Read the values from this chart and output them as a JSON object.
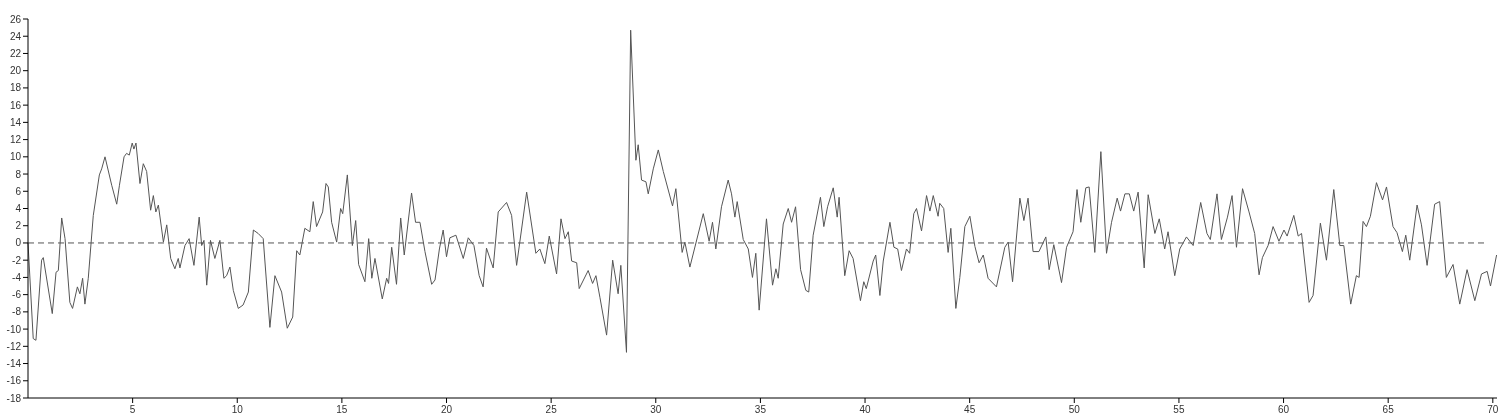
{
  "chart_data": {
    "type": "line",
    "x": [
      0,
      0.25,
      0.38,
      0.65,
      0.73,
      1.16,
      1.34,
      1.45,
      1.61,
      1.77,
      2.0,
      2.13,
      2.36,
      2.48,
      2.61,
      2.72,
      2.88,
      3.12,
      3.41,
      3.52,
      3.68,
      4.0,
      4.24,
      4.37,
      4.59,
      4.71,
      4.84,
      4.98,
      5.06,
      5.16,
      5.35,
      5.51,
      5.67,
      5.86,
      5.99,
      6.11,
      6.23,
      6.47,
      6.63,
      6.82,
      7.02,
      7.18,
      7.26,
      7.5,
      7.7,
      7.93,
      8.18,
      8.3,
      8.41,
      8.54,
      8.72,
      8.93,
      9.17,
      9.36,
      9.49,
      9.65,
      9.81,
      10.05,
      10.28,
      10.53,
      10.77,
      11.0,
      11.24,
      11.56,
      11.8,
      12.12,
      12.39,
      12.65,
      12.84,
      12.99,
      13.23,
      13.47,
      13.63,
      13.79,
      14.08,
      14.24,
      14.35,
      14.51,
      14.75,
      14.94,
      15.04,
      15.26,
      15.5,
      15.66,
      15.8,
      16.1,
      16.28,
      16.43,
      16.58,
      16.93,
      17.14,
      17.23,
      17.38,
      17.61,
      17.81,
      17.98,
      18.33,
      18.52,
      18.73,
      18.97,
      19.29,
      19.45,
      19.66,
      19.84,
      20.0,
      20.16,
      20.45,
      20.8,
      21.04,
      21.31,
      21.56,
      21.75,
      21.91,
      22.23,
      22.47,
      22.87,
      23.11,
      23.35,
      23.83,
      24.27,
      24.46,
      24.7,
      24.91,
      25.26,
      25.47,
      25.66,
      25.82,
      25.98,
      26.22,
      26.34,
      26.77,
      26.98,
      27.14,
      27.33,
      27.65,
      27.94,
      28.2,
      28.33,
      28.6,
      28.8,
      29.05,
      29.16,
      29.32,
      29.53,
      29.64,
      29.88,
      30.12,
      30.36,
      30.8,
      30.96,
      31.26,
      31.39,
      31.63,
      32.27,
      32.55,
      32.71,
      32.87,
      33.14,
      33.46,
      33.62,
      33.78,
      33.89,
      34.18,
      34.42,
      34.62,
      34.78,
      34.94,
      35.29,
      35.58,
      35.74,
      35.85,
      36.09,
      36.33,
      36.49,
      36.68,
      36.92,
      37.17,
      37.31,
      37.52,
      37.87,
      38.03,
      38.21,
      38.48,
      38.67,
      38.76,
      39.03,
      39.24,
      39.43,
      39.78,
      39.94,
      40.06,
      40.39,
      40.51,
      40.71,
      40.87,
      41.19,
      41.38,
      41.56,
      41.74,
      41.98,
      42.13,
      42.33,
      42.46,
      42.7,
      42.94,
      43.1,
      43.26,
      43.49,
      43.57,
      43.76,
      43.97,
      44.1,
      44.34,
      44.53,
      44.77,
      45.01,
      45.25,
      45.45,
      45.65,
      45.88,
      46.28,
      46.68,
      46.84,
      47.05,
      47.4,
      47.59,
      47.79,
      48.03,
      48.31,
      48.64,
      48.8,
      49.02,
      49.39,
      49.63,
      49.94,
      50.13,
      50.31,
      50.55,
      50.71,
      50.98,
      51.27,
      51.54,
      51.78,
      52.05,
      52.21,
      52.42,
      52.63,
      52.84,
      53.05,
      53.34,
      53.53,
      53.85,
      54.06,
      54.32,
      54.48,
      54.8,
      55.04,
      55.36,
      55.68,
      56.04,
      56.34,
      56.5,
      56.82,
      57.03,
      57.32,
      57.54,
      57.75,
      58.04,
      58.35,
      58.62,
      58.83,
      58.99,
      59.26,
      59.5,
      59.78,
      60.02,
      60.17,
      60.49,
      60.7,
      60.86,
      61.22,
      61.41,
      61.76,
      62.05,
      62.4,
      62.69,
      62.88,
      63.21,
      63.48,
      63.61,
      63.8,
      63.96,
      64.15,
      64.44,
      64.73,
      64.92,
      65.23,
      65.42,
      65.68,
      65.84,
      66.03,
      66.38,
      66.59,
      66.86,
      67.22,
      67.46,
      67.78,
      68.1,
      68.42,
      68.77,
      69.14,
      69.46,
      69.73,
      69.89,
      70.18
    ],
    "series": [
      {
        "color": "#555555",
        "values": [
          0,
          -11.1,
          -11.3,
          -2.0,
          -1.7,
          -8.2,
          -3.4,
          -3.2,
          2.9,
          0.5,
          -6.9,
          -7.6,
          -5.1,
          -5.9,
          -4.1,
          -7.1,
          -4.1,
          3.2,
          7.9,
          8.6,
          10.0,
          6.7,
          4.5,
          6.7,
          10.0,
          10.4,
          10.2,
          11.6,
          10.9,
          11.6,
          6.9,
          9.2,
          8.3,
          3.8,
          5.5,
          3.6,
          4.4,
          0.1,
          2.1,
          -1.8,
          -3.0,
          -1.8,
          -2.9,
          -0.3,
          0.5,
          -2.6,
          3.0,
          -0.3,
          0.3,
          -4.9,
          0.3,
          -1.8,
          0.3,
          -4.1,
          -3.8,
          -2.8,
          -5.5,
          -7.6,
          -7.2,
          -5.7,
          1.5,
          1.1,
          0.5,
          -9.8,
          -3.8,
          -5.7,
          -9.9,
          -8.6,
          -0.9,
          -1.4,
          1.7,
          1.3,
          4.8,
          1.9,
          3.6,
          6.9,
          6.5,
          2.4,
          0.1,
          4.0,
          3.4,
          7.9,
          -0.3,
          2.6,
          -2.5,
          -4.5,
          0.5,
          -4.1,
          -1.8,
          -6.5,
          -4.1,
          -4.7,
          -0.5,
          -4.8,
          2.9,
          -1.4,
          5.8,
          2.4,
          2.4,
          -1.0,
          -4.8,
          -4.3,
          -0.7,
          1.5,
          -1.6,
          0.6,
          0.9,
          -1.8,
          0.6,
          -0.3,
          -3.8,
          -5.1,
          -0.6,
          -2.9,
          3.6,
          4.7,
          3.2,
          -2.6,
          5.9,
          -1.2,
          -0.7,
          -2.4,
          0.8,
          -3.6,
          2.8,
          0.5,
          1.3,
          -2.1,
          -2.3,
          -5.3,
          -3.2,
          -4.7,
          -3.8,
          -6.3,
          -10.7,
          -2.0,
          -5.9,
          -2.6,
          -12.7,
          24.7,
          9.6,
          11.4,
          7.3,
          7.1,
          5.7,
          8.6,
          10.8,
          8.3,
          4.3,
          6.3,
          -1.1,
          0.1,
          -2.8,
          3.4,
          0.2,
          2.4,
          -0.7,
          4.2,
          7.3,
          5.7,
          3.0,
          4.8,
          0.4,
          -0.7,
          -4.0,
          -1.2,
          -7.8,
          2.8,
          -4.9,
          -3.0,
          -4.1,
          2.2,
          4.0,
          2.4,
          4.2,
          -3.1,
          -5.5,
          -5.7,
          0.9,
          5.3,
          1.9,
          4.2,
          6.4,
          3.0,
          5.3,
          -3.8,
          -0.9,
          -1.8,
          -6.7,
          -4.5,
          -5.3,
          -2.1,
          -1.4,
          -6.1,
          -2.1,
          2.4,
          -0.5,
          -0.7,
          -3.2,
          -0.7,
          -1.2,
          3.4,
          4.0,
          1.4,
          5.5,
          3.7,
          5.5,
          3.1,
          4.6,
          4.0,
          -1.1,
          1.7,
          -7.6,
          -4.0,
          1.9,
          3.1,
          -0.4,
          -2.3,
          -1.4,
          -4.1,
          -5.1,
          -0.5,
          0.1,
          -4.5,
          5.2,
          2.6,
          5.2,
          -1.0,
          -1.0,
          0.7,
          -3.1,
          -0.2,
          -4.6,
          -0.5,
          1.3,
          6.2,
          2.4,
          6.4,
          6.5,
          -1.1,
          10.6,
          -1.2,
          2.4,
          5.2,
          3.7,
          5.7,
          5.7,
          3.7,
          5.9,
          -2.9,
          5.6,
          1.1,
          2.8,
          -0.7,
          1.3,
          -3.8,
          -0.7,
          0.7,
          -0.3,
          4.7,
          1.1,
          0.4,
          5.7,
          0.4,
          3.0,
          5.5,
          -0.5,
          6.3,
          3.6,
          1.1,
          -3.7,
          -1.7,
          -0.3,
          1.9,
          0.2,
          1.5,
          0.8,
          3.2,
          0.8,
          1.1,
          -6.9,
          -6.1,
          2.3,
          -2.0,
          6.2,
          -0.3,
          -0.3,
          -7.1,
          -3.8,
          -4.0,
          2.5,
          1.9,
          3.1,
          7.0,
          5.0,
          6.5,
          1.9,
          1.2,
          -1.0,
          0.9,
          -2.0,
          4.4,
          2.1,
          -2.6,
          4.5,
          4.8,
          -4.0,
          -2.5,
          -7.1,
          -3.1,
          -6.7,
          -3.6,
          -3.3,
          -5.0,
          -1.4
        ]
      }
    ],
    "xlim": [
      0,
      70.2
    ],
    "xticks": [
      5,
      10,
      15,
      20,
      25,
      30,
      35,
      40,
      45,
      50,
      55,
      60,
      65,
      70
    ],
    "ylim": [
      -18,
      26
    ],
    "yticks": [
      -18,
      -16,
      -14,
      -12,
      -10,
      -8,
      -6,
      -4,
      -2,
      0,
      2,
      4,
      6,
      8,
      10,
      12,
      14,
      16,
      18,
      20,
      22,
      24,
      26
    ],
    "ref_lines": [
      {
        "axis": "y",
        "value": 0,
        "color": "#555555",
        "line_style": "dashed"
      }
    ],
    "grid": false,
    "marker": "none",
    "line_style": "solid"
  }
}
